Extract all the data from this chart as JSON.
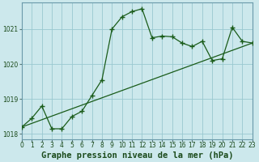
{
  "title": "Graphe pression niveau de la mer (hPa)",
  "bg_color": "#cce8ec",
  "grid_color": "#99c8d0",
  "line_color": "#1a5c1a",
  "line1_x": [
    0,
    1,
    2,
    3,
    4,
    5,
    6,
    7,
    8,
    9,
    10,
    11,
    12,
    13,
    14,
    15,
    16,
    17,
    18,
    19,
    20,
    21,
    22,
    23
  ],
  "line1_y": [
    1018.2,
    1018.45,
    1018.8,
    1018.15,
    1018.15,
    1018.5,
    1018.65,
    1019.1,
    1019.55,
    1021.0,
    1021.35,
    1021.5,
    1021.58,
    1020.75,
    1020.8,
    1020.78,
    1020.6,
    1020.5,
    1020.65,
    1020.1,
    1020.15,
    1021.05,
    1020.65,
    1020.6
  ],
  "line2_x": [
    0,
    23
  ],
  "line2_y": [
    1018.2,
    1020.6
  ],
  "xlim": [
    0,
    23
  ],
  "ylim": [
    1017.85,
    1021.75
  ],
  "yticks": [
    1018,
    1019,
    1020,
    1021
  ],
  "xticks": [
    0,
    1,
    2,
    3,
    4,
    5,
    6,
    7,
    8,
    9,
    10,
    11,
    12,
    13,
    14,
    15,
    16,
    17,
    18,
    19,
    20,
    21,
    22,
    23
  ],
  "title_fontsize": 7.5,
  "tick_fontsize": 5.5
}
